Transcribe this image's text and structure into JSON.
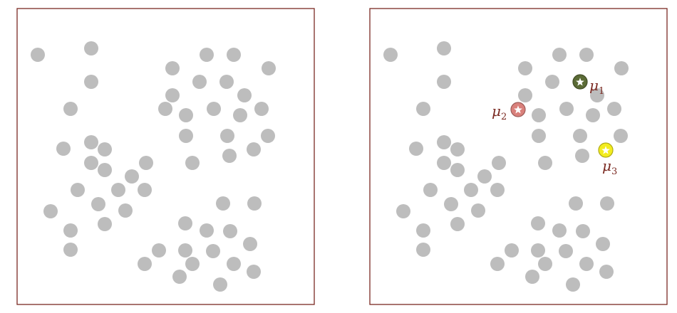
{
  "colors": {
    "frame": "#7b2a22",
    "point": "#bdbdbd",
    "label": "#7b2a22"
  },
  "icons": {
    "centroid_marker": "star-icon"
  },
  "panels": {
    "left": {
      "points": [
        [
          53,
          77
        ],
        [
          128,
          68
        ],
        [
          290,
          77
        ],
        [
          328,
          77
        ],
        [
          242,
          96
        ],
        [
          377,
          96
        ],
        [
          128,
          115
        ],
        [
          280,
          115
        ],
        [
          318,
          115
        ],
        [
          242,
          134
        ],
        [
          343,
          134
        ],
        [
          99,
          153
        ],
        [
          232,
          153
        ],
        [
          300,
          153
        ],
        [
          367,
          153
        ],
        [
          261,
          162
        ],
        [
          337,
          162
        ],
        [
          261,
          191
        ],
        [
          319,
          191
        ],
        [
          376,
          191
        ],
        [
          89,
          209
        ],
        [
          128,
          200
        ],
        [
          147,
          210
        ],
        [
          356,
          210
        ],
        [
          270,
          229
        ],
        [
          322,
          219
        ],
        [
          128,
          229
        ],
        [
          147,
          239
        ],
        [
          205,
          229
        ],
        [
          185,
          248
        ],
        [
          109,
          267
        ],
        [
          166,
          267
        ],
        [
          203,
          267
        ],
        [
          138,
          287
        ],
        [
          176,
          296
        ],
        [
          71,
          297
        ],
        [
          313,
          286
        ],
        [
          357,
          286
        ],
        [
          147,
          315
        ],
        [
          260,
          314
        ],
        [
          99,
          324
        ],
        [
          290,
          324
        ],
        [
          323,
          325
        ],
        [
          99,
          351
        ],
        [
          223,
          352
        ],
        [
          260,
          352
        ],
        [
          299,
          353
        ],
        [
          351,
          343
        ],
        [
          203,
          371
        ],
        [
          270,
          371
        ],
        [
          328,
          371
        ],
        [
          356,
          382
        ],
        [
          252,
          389
        ],
        [
          309,
          400
        ]
      ]
    },
    "right": {
      "points": [
        [
          548,
          77
        ],
        [
          623,
          68
        ],
        [
          785,
          77
        ],
        [
          823,
          77
        ],
        [
          737,
          96
        ],
        [
          872,
          96
        ],
        [
          623,
          115
        ],
        [
          775,
          115
        ],
        [
          737,
          134
        ],
        [
          838,
          134
        ],
        [
          594,
          153
        ],
        [
          795,
          153
        ],
        [
          862,
          153
        ],
        [
          756,
          162
        ],
        [
          832,
          162
        ],
        [
          756,
          191
        ],
        [
          814,
          191
        ],
        [
          871,
          191
        ],
        [
          584,
          209
        ],
        [
          623,
          200
        ],
        [
          642,
          210
        ],
        [
          765,
          229
        ],
        [
          817,
          219
        ],
        [
          623,
          229
        ],
        [
          642,
          239
        ],
        [
          700,
          229
        ],
        [
          680,
          248
        ],
        [
          604,
          267
        ],
        [
          661,
          267
        ],
        [
          698,
          267
        ],
        [
          633,
          287
        ],
        [
          671,
          296
        ],
        [
          566,
          297
        ],
        [
          808,
          286
        ],
        [
          852,
          286
        ],
        [
          642,
          315
        ],
        [
          755,
          314
        ],
        [
          594,
          324
        ],
        [
          785,
          324
        ],
        [
          818,
          325
        ],
        [
          594,
          351
        ],
        [
          718,
          352
        ],
        [
          755,
          352
        ],
        [
          794,
          353
        ],
        [
          846,
          343
        ],
        [
          698,
          371
        ],
        [
          765,
          371
        ],
        [
          823,
          371
        ],
        [
          851,
          382
        ],
        [
          747,
          389
        ],
        [
          804,
          400
        ]
      ],
      "centroids": [
        {
          "symbol": "μ",
          "subscript": "1",
          "color": "#5b6b36",
          "position": [
            814,
            115
          ],
          "label_position": [
            827,
            127
          ]
        },
        {
          "symbol": "μ",
          "subscript": "2",
          "color": "#d9807b",
          "position": [
            727,
            154
          ],
          "label_position": [
            690,
            163
          ]
        },
        {
          "symbol": "μ",
          "subscript": "3",
          "color": "#f3ec1e",
          "position": [
            850,
            211
          ],
          "label_position": [
            845,
            240
          ]
        }
      ]
    }
  }
}
